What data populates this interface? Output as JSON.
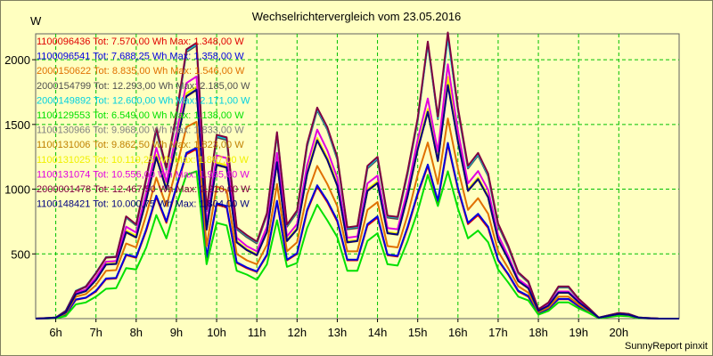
{
  "footer": "SunnyReport pinxit",
  "chart_data": {
    "type": "line",
    "title": "Wechselrichtervergleich vom 23.05.2016",
    "ylabel": "W",
    "ylim": [
      0,
      2200
    ],
    "yticks": [
      500,
      1000,
      1500,
      2000
    ],
    "xlim": [
      5.5,
      21.5
    ],
    "xticks": [
      6,
      7,
      8,
      9,
      10,
      11,
      12,
      13,
      14,
      15,
      16,
      17,
      18,
      19,
      20
    ],
    "xtick_labels": [
      "6h",
      "7h",
      "8h",
      "9h",
      "10h",
      "11h",
      "12h",
      "13h",
      "14h",
      "15h",
      "16h",
      "17h",
      "18h",
      "19h",
      "20h"
    ],
    "grid": true,
    "legend_placement": "top-left",
    "x": [
      5.5,
      5.75,
      6.0,
      6.25,
      6.5,
      6.75,
      7.0,
      7.25,
      7.5,
      7.75,
      8.0,
      8.25,
      8.5,
      8.75,
      9.0,
      9.25,
      9.5,
      9.75,
      10.0,
      10.25,
      10.5,
      10.75,
      11.0,
      11.25,
      11.5,
      11.75,
      12.0,
      12.25,
      12.5,
      12.75,
      13.0,
      13.25,
      13.5,
      13.75,
      14.0,
      14.25,
      14.5,
      14.75,
      15.0,
      15.25,
      15.5,
      15.75,
      16.0,
      16.25,
      16.5,
      16.75,
      17.0,
      17.25,
      17.5,
      17.75,
      18.0,
      18.25,
      18.5,
      18.75,
      19.0,
      19.25,
      19.5,
      19.75,
      20.0,
      20.25,
      20.5,
      20.75,
      21.0,
      21.25,
      21.5
    ],
    "series": [
      {
        "name": "1100096436 Tot: 7.570,00 Wh Max: 1.348,00 W",
        "color": "#e00000",
        "values": [
          0,
          2,
          5,
          30,
          145,
          160,
          210,
          305,
          310,
          490,
          470,
          680,
          940,
          740,
          1010,
          1270,
          1310,
          470,
          880,
          860,
          430,
          390,
          360,
          490,
          900,
          450,
          500,
          830,
          1020,
          900,
          750,
          450,
          450,
          720,
          780,
          490,
          480,
          700,
          960,
          1180,
          900,
          1348,
          1000,
          730,
          800,
          700,
          450,
          340,
          210,
          170,
          40,
          75,
          150,
          150,
          95,
          55,
          5,
          15,
          28,
          22,
          5,
          3,
          0,
          0,
          0
        ]
      },
      {
        "name": "1100096541 Tot: 7.688,25 Wh Max: 1.358,00 W",
        "color": "#0000e0",
        "values": [
          0,
          2,
          5,
          32,
          148,
          162,
          215,
          310,
          315,
          495,
          475,
          690,
          950,
          750,
          1020,
          1280,
          1320,
          475,
          890,
          870,
          435,
          395,
          365,
          495,
          910,
          455,
          505,
          840,
          1030,
          910,
          760,
          455,
          455,
          730,
          790,
          495,
          485,
          710,
          970,
          1190,
          910,
          1358,
          1010,
          740,
          810,
          710,
          455,
          345,
          215,
          175,
          42,
          78,
          152,
          152,
          98,
          57,
          5,
          16,
          29,
          23,
          5,
          3,
          0,
          0,
          0
        ]
      },
      {
        "name": "2000150622 Tot: 8.835,00 Wh Max: 1.546,00 W",
        "color": "#e07000",
        "values": [
          0,
          3,
          6,
          40,
          170,
          190,
          260,
          370,
          375,
          580,
          550,
          800,
          1090,
          870,
          1160,
          1480,
          1520,
          560,
          1020,
          990,
          500,
          450,
          420,
          570,
          1040,
          520,
          590,
          960,
          1180,
          1040,
          870,
          520,
          520,
          840,
          900,
          560,
          550,
          800,
          1110,
          1360,
          1040,
          1546,
          1160,
          840,
          930,
          810,
          520,
          390,
          250,
          200,
          50,
          85,
          170,
          170,
          110,
          60,
          6,
          18,
          32,
          25,
          6,
          3,
          0,
          0,
          0
        ]
      },
      {
        "name": "2000154799 Tot: 12.293,00 Wh Max: 2.185,00 W",
        "color": "#505050",
        "values": [
          0,
          4,
          8,
          60,
          210,
          245,
          350,
          470,
          475,
          780,
          720,
          1070,
          1450,
          1150,
          1550,
          2060,
          2110,
          830,
          1400,
          1380,
          690,
          630,
          580,
          800,
          1420,
          710,
          820,
          1330,
          1610,
          1460,
          1230,
          690,
          700,
          1160,
          1230,
          780,
          770,
          1120,
          1530,
          2130,
          1540,
          2185,
          1610,
          1160,
          1260,
          1100,
          720,
          550,
          350,
          280,
          70,
          120,
          240,
          240,
          150,
          80,
          8,
          25,
          42,
          35,
          8,
          4,
          0,
          0,
          0
        ]
      },
      {
        "name": "2000149892 Tot: 12.600,00 Wh Max: 2.171,00 W",
        "color": "#00d0e0",
        "values": [
          0,
          4,
          8,
          62,
          215,
          250,
          355,
          475,
          480,
          785,
          725,
          1080,
          1460,
          1160,
          1560,
          2070,
          2120,
          840,
          1410,
          1390,
          700,
          640,
          590,
          810,
          1430,
          720,
          830,
          1340,
          1620,
          1470,
          1240,
          700,
          710,
          1170,
          1240,
          790,
          780,
          1130,
          1540,
          2120,
          1550,
          2171,
          1620,
          1170,
          1270,
          1110,
          730,
          560,
          355,
          285,
          72,
          122,
          245,
          245,
          152,
          82,
          8,
          26,
          43,
          36,
          8,
          4,
          0,
          0,
          0
        ]
      },
      {
        "name": "1100129553 Tot: 6.549,00 Wh Max: 1.138,00 W",
        "color": "#00e000",
        "values": [
          0,
          1,
          3,
          20,
          110,
          125,
          170,
          230,
          235,
          390,
          380,
          550,
          800,
          620,
          880,
          1110,
          1138,
          420,
          740,
          720,
          370,
          340,
          300,
          420,
          760,
          400,
          430,
          700,
          880,
          760,
          630,
          370,
          370,
          600,
          660,
          420,
          410,
          600,
          830,
          1110,
          870,
          1138,
          850,
          620,
          680,
          590,
          380,
          280,
          170,
          140,
          30,
          60,
          125,
          125,
          80,
          45,
          3,
          12,
          22,
          18,
          3,
          2,
          0,
          0,
          0
        ]
      },
      {
        "name": "1100130966 Tot: 9.968,00 Wh Max: 1.833,00 W",
        "color": "#808080",
        "values": [
          0,
          3,
          7,
          48,
          190,
          215,
          300,
          420,
          425,
          670,
          630,
          920,
          1250,
          1000,
          1350,
          1720,
          1770,
          690,
          1190,
          1170,
          590,
          530,
          490,
          670,
          1210,
          600,
          690,
          1120,
          1380,
          1230,
          1030,
          590,
          600,
          990,
          1050,
          660,
          650,
          950,
          1310,
          1600,
          1220,
          1833,
          1370,
          990,
          1080,
          940,
          610,
          460,
          290,
          235,
          60,
          100,
          200,
          200,
          128,
          68,
          7,
          21,
          36,
          29,
          7,
          3,
          0,
          0,
          0
        ]
      },
      {
        "name": "1100131006 Tot: 9.862,50 Wh Max: 1.823,00 W",
        "color": "#c08000",
        "values": [
          0,
          3,
          7,
          47,
          188,
          212,
          298,
          418,
          422,
          665,
          625,
          915,
          1245,
          995,
          1345,
          1715,
          1765,
          685,
          1185,
          1165,
          588,
          528,
          488,
          668,
          1205,
          598,
          688,
          1115,
          1375,
          1225,
          1025,
          588,
          598,
          985,
          1045,
          658,
          648,
          945,
          1305,
          1595,
          1215,
          1823,
          1365,
          985,
          1075,
          935,
          608,
          458,
          288,
          233,
          59,
          99,
          198,
          198,
          127,
          67,
          7,
          21,
          35,
          28,
          7,
          3,
          0,
          0,
          0
        ]
      },
      {
        "name": "1100131025 Tot: 10.119,25 Wh Max: 1.867,00 W",
        "color": "#f0f000",
        "values": [
          0,
          3,
          7,
          50,
          193,
          218,
          305,
          425,
          430,
          680,
          640,
          935,
          1265,
          1015,
          1370,
          1740,
          1790,
          700,
          1205,
          1185,
          598,
          538,
          498,
          680,
          1225,
          608,
          700,
          1135,
          1395,
          1245,
          1045,
          598,
          608,
          1000,
          1060,
          668,
          658,
          960,
          1325,
          1620,
          1235,
          1867,
          1385,
          1000,
          1090,
          950,
          618,
          465,
          293,
          238,
          61,
          101,
          202,
          202,
          130,
          69,
          7,
          22,
          36,
          29,
          7,
          3,
          0,
          0,
          0
        ]
      },
      {
        "name": "1100131074 Tot: 10.556,00 Wh Max: 1.965,00 W",
        "color": "#e000e0",
        "values": [
          0,
          3,
          7,
          52,
          198,
          225,
          318,
          440,
          445,
          710,
          665,
          975,
          1320,
          1055,
          1430,
          1820,
          1870,
          730,
          1260,
          1240,
          625,
          560,
          520,
          710,
          1280,
          635,
          730,
          1185,
          1460,
          1300,
          1090,
          625,
          635,
          1045,
          1105,
          700,
          690,
          1000,
          1385,
          1700,
          1290,
          1965,
          1450,
          1045,
          1140,
          995,
          645,
          485,
          305,
          248,
          63,
          105,
          210,
          210,
          135,
          72,
          7,
          23,
          38,
          30,
          7,
          3,
          0,
          0,
          0
        ]
      },
      {
        "name": "2000001478 Tot: 12.467,50 Wh Max: 2.210,00 W",
        "color": "#800040",
        "values": [
          0,
          4,
          8,
          60,
          212,
          248,
          352,
          472,
          478,
          790,
          728,
          1085,
          1470,
          1165,
          1575,
          2080,
          2130,
          845,
          1420,
          1400,
          705,
          645,
          595,
          815,
          1440,
          725,
          835,
          1350,
          1630,
          1480,
          1250,
          705,
          715,
          1180,
          1250,
          795,
          785,
          1140,
          1550,
          2140,
          1560,
          2210,
          1630,
          1180,
          1280,
          1120,
          735,
          565,
          358,
          288,
          73,
          124,
          248,
          248,
          154,
          83,
          8,
          26,
          44,
          36,
          8,
          4,
          0,
          0,
          0
        ]
      },
      {
        "name": "1100148421 Tot: 10.000,75 Wh Max: 1.804,00 W",
        "color": "#000080",
        "values": [
          0,
          3,
          7,
          48,
          188,
          213,
          298,
          418,
          423,
          668,
          628,
          918,
          1248,
          998,
          1348,
          1718,
          1768,
          688,
          1188,
          1168,
          590,
          530,
          490,
          670,
          1208,
          600,
          690,
          1118,
          1378,
          1228,
          1028,
          590,
          600,
          988,
          1048,
          660,
          650,
          948,
          1308,
          1598,
          1218,
          1804,
          1368,
          988,
          1078,
          938,
          610,
          460,
          290,
          235,
          60,
          100,
          200,
          200,
          128,
          68,
          7,
          21,
          36,
          29,
          7,
          3,
          0,
          0,
          0
        ]
      }
    ]
  }
}
